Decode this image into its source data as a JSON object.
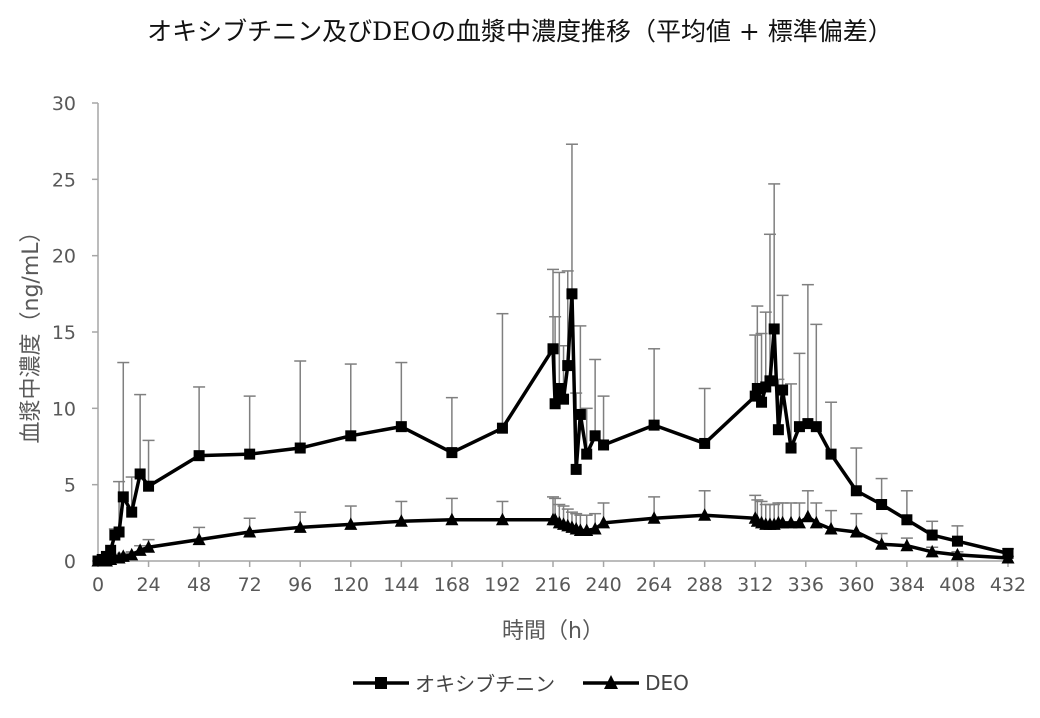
{
  "chart_data": {
    "type": "line",
    "title": "オキシブチニン及びDEOの血漿中濃度推移（平均値 + 標準偏差）",
    "xlabel": "時間（h）",
    "ylabel": "血漿中濃度（ng/mL）",
    "xlim": [
      0,
      432
    ],
    "ylim": [
      0,
      30
    ],
    "x_ticks": [
      "0",
      "24",
      "48",
      "72",
      "96",
      "120",
      "144",
      "168",
      "192",
      "216",
      "240",
      "264",
      "288",
      "312",
      "336",
      "360",
      "384",
      "408",
      "432"
    ],
    "y_ticks": [
      "0",
      "5",
      "10",
      "15",
      "20",
      "25",
      "30"
    ],
    "legend_position": "bottom",
    "grid": false,
    "series": [
      {
        "name": "オキシブチニン",
        "marker": "square",
        "color": "#000000",
        "x": [
          0,
          2,
          4,
          6,
          8,
          10,
          12,
          16,
          20,
          24,
          48,
          72,
          96,
          120,
          144,
          168,
          192,
          216,
          217,
          219,
          221,
          223,
          225,
          227,
          229,
          232,
          236,
          240,
          264,
          288,
          312,
          313,
          315,
          317,
          319,
          321,
          323,
          325,
          329,
          333,
          337,
          341,
          348,
          360,
          372,
          384,
          396,
          408,
          432
        ],
        "y": [
          0,
          0.1,
          0.3,
          0.7,
          1.7,
          1.9,
          4.2,
          3.2,
          5.7,
          4.9,
          6.9,
          7.0,
          7.4,
          8.2,
          8.8,
          7.1,
          8.7,
          13.9,
          10.3,
          11.3,
          10.6,
          12.8,
          17.5,
          6.0,
          9.6,
          7.0,
          8.2,
          7.6,
          8.9,
          7.7,
          10.8,
          11.3,
          10.4,
          11.4,
          11.8,
          15.2,
          8.6,
          11.2,
          7.4,
          8.8,
          9.0,
          8.8,
          7.0,
          4.6,
          3.7,
          2.7,
          1.7,
          1.3,
          0.5
        ],
        "error_upper": [
          0,
          0.1,
          0.3,
          0.7,
          2.1,
          5.2,
          13.0,
          5.5,
          10.9,
          7.9,
          11.4,
          10.8,
          13.1,
          12.9,
          13.0,
          10.7,
          16.2,
          19.1,
          16.0,
          18.9,
          14.1,
          19.0,
          27.3,
          11.0,
          15.4,
          10.0,
          13.2,
          10.8,
          13.9,
          11.3,
          14.8,
          16.7,
          14.9,
          16.3,
          21.4,
          24.7,
          11.9,
          17.4,
          11.6,
          13.6,
          18.1,
          15.5,
          10.4,
          7.4,
          5.4,
          4.6,
          2.6,
          2.3,
          0.8
        ]
      },
      {
        "name": "DEO",
        "marker": "triangle",
        "color": "#000000",
        "x": [
          0,
          2,
          4,
          6,
          8,
          10,
          12,
          16,
          20,
          24,
          48,
          72,
          96,
          120,
          144,
          168,
          192,
          216,
          217,
          219,
          221,
          223,
          225,
          227,
          229,
          232,
          236,
          240,
          264,
          288,
          312,
          313,
          315,
          317,
          319,
          321,
          323,
          325,
          329,
          333,
          337,
          341,
          348,
          360,
          372,
          384,
          396,
          408,
          432
        ],
        "y": [
          0,
          0,
          0,
          0.1,
          0.2,
          0.2,
          0.3,
          0.4,
          0.7,
          0.9,
          1.4,
          1.9,
          2.2,
          2.4,
          2.6,
          2.7,
          2.7,
          2.7,
          2.7,
          2.5,
          2.4,
          2.3,
          2.2,
          2.1,
          2.0,
          2.0,
          2.1,
          2.5,
          2.8,
          3.0,
          2.8,
          2.6,
          2.5,
          2.4,
          2.4,
          2.4,
          2.5,
          2.5,
          2.5,
          2.5,
          2.9,
          2.5,
          2.1,
          1.9,
          1.1,
          1.0,
          0.6,
          0.4,
          0.2
        ],
        "error_upper": [
          0,
          0,
          0,
          0.1,
          0.3,
          0.3,
          0.5,
          0.6,
          1.0,
          1.4,
          2.2,
          2.8,
          3.2,
          3.6,
          3.9,
          4.1,
          3.9,
          4.2,
          4.1,
          3.7,
          3.6,
          3.4,
          3.2,
          3.1,
          3.0,
          3.0,
          3.1,
          3.8,
          4.2,
          4.6,
          4.3,
          4.0,
          3.9,
          3.7,
          3.7,
          3.7,
          3.8,
          3.8,
          3.8,
          3.8,
          4.6,
          3.8,
          3.3,
          3.1,
          1.8,
          1.5,
          0.9,
          0.6,
          0.3
        ]
      }
    ]
  }
}
